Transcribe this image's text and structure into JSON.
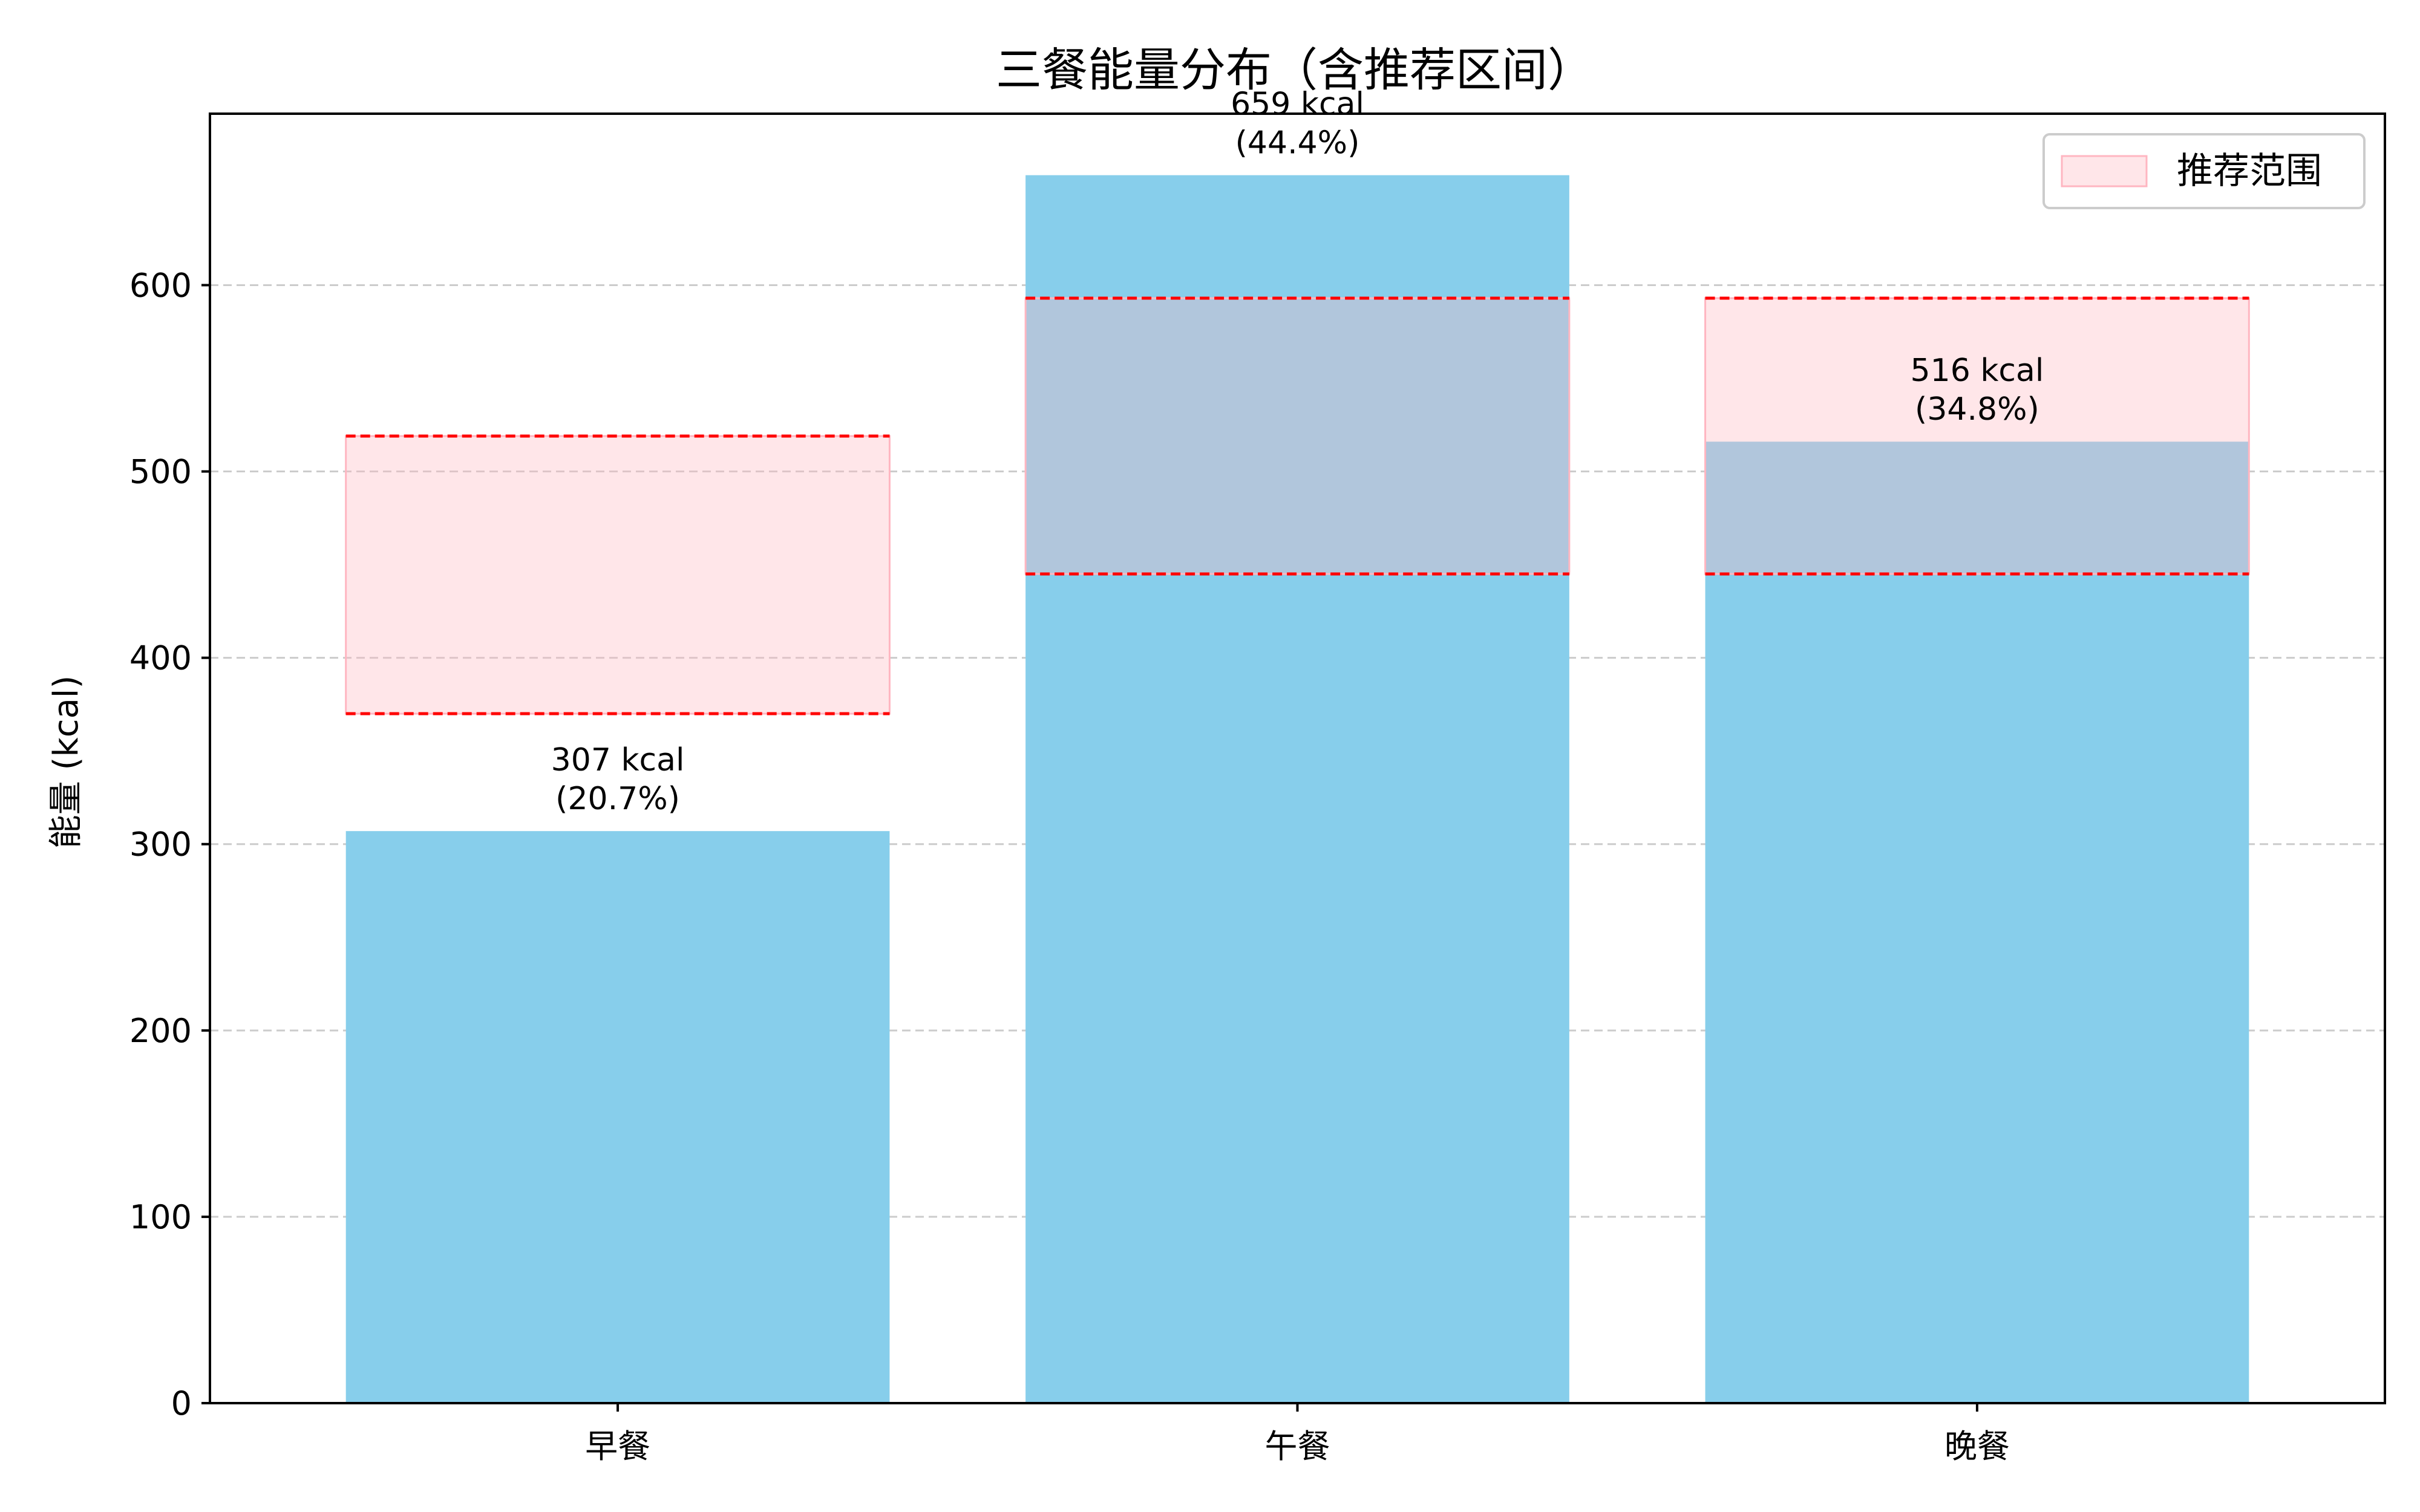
{
  "chart_data": {
    "type": "bar",
    "title": "三餐能量分布（含推荐区间）",
    "xlabel": "",
    "ylabel": "能量 (kcal)",
    "categories": [
      "早餐",
      "午餐",
      "晚餐"
    ],
    "values": [
      307,
      659,
      516
    ],
    "bar_labels": [
      {
        "value_text": "307 kcal",
        "pct_text": "(20.7%)"
      },
      {
        "value_text": "659 kcal",
        "pct_text": "(44.4%)"
      },
      {
        "value_text": "516 kcal",
        "pct_text": "(34.8%)"
      }
    ],
    "recommended_ranges": [
      [
        370,
        519
      ],
      [
        445,
        593
      ],
      [
        445,
        593
      ]
    ],
    "ylim": [
      0,
      692
    ],
    "yticks": [
      0,
      100,
      200,
      300,
      400,
      500,
      600
    ],
    "grid": "y-dashed",
    "legend": {
      "placement": "top-right",
      "entries": [
        "推荐范围"
      ]
    },
    "colors": {
      "bar": "#87ceeb",
      "range_fill": "#ffb6c1",
      "range_edge": "#ff0000",
      "grid": "#cccccc"
    }
  }
}
